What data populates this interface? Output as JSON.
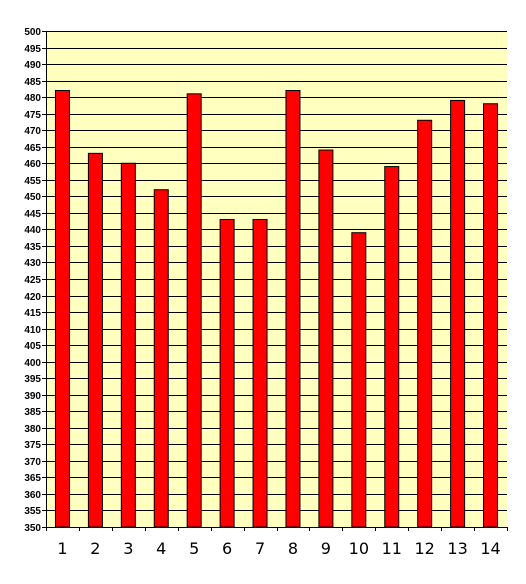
{
  "chart_data": {
    "type": "bar",
    "title": "",
    "xlabel": "",
    "ylabel": "",
    "categories": [
      "1",
      "2",
      "3",
      "4",
      "5",
      "6",
      "7",
      "8",
      "9",
      "10",
      "11",
      "12",
      "13",
      "14"
    ],
    "values": [
      482,
      463,
      460,
      452,
      481,
      443,
      443,
      482,
      464,
      439,
      459,
      473,
      479,
      478
    ],
    "ylim": [
      350,
      500
    ],
    "ytick_step": 5,
    "grid": true,
    "legend": "none",
    "colors": {
      "plot_background": "#ffffc0",
      "bar_fill": "#ff0000",
      "bar_stroke": "#000000",
      "gridline": "#000000"
    }
  }
}
